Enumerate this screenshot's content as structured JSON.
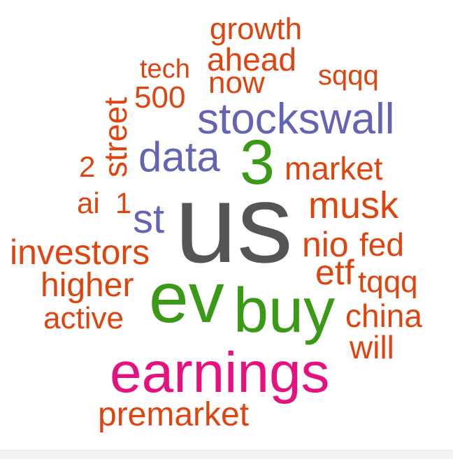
{
  "colors": {
    "orange": "#e0440e",
    "purple": "#6464b4",
    "green": "#3a9a16",
    "gray": "#555555",
    "magenta": "#e6117f"
  },
  "words": [
    {
      "id": "growth",
      "text": "growth",
      "color": "orange"
    },
    {
      "id": "tech",
      "text": "tech",
      "color": "orange"
    },
    {
      "id": "ahead",
      "text": "ahead",
      "color": "orange"
    },
    {
      "id": "sqqq",
      "text": "sqqq",
      "color": "orange"
    },
    {
      "id": "now",
      "text": "now",
      "color": "orange"
    },
    {
      "id": "500",
      "text": "500",
      "color": "orange"
    },
    {
      "id": "street",
      "text": "street",
      "color": "orange"
    },
    {
      "id": "stockswall",
      "text": "stockswall",
      "color": "purple"
    },
    {
      "id": "data",
      "text": "data",
      "color": "purple"
    },
    {
      "id": "3",
      "text": "3",
      "color": "green"
    },
    {
      "id": "2",
      "text": "2",
      "color": "orange"
    },
    {
      "id": "market",
      "text": "market",
      "color": "orange"
    },
    {
      "id": "ai",
      "text": "ai",
      "color": "orange"
    },
    {
      "id": "1",
      "text": "1",
      "color": "orange"
    },
    {
      "id": "musk",
      "text": "musk",
      "color": "orange"
    },
    {
      "id": "st",
      "text": "st",
      "color": "purple"
    },
    {
      "id": "us",
      "text": "us",
      "color": "gray"
    },
    {
      "id": "investors",
      "text": "investors",
      "color": "orange"
    },
    {
      "id": "nio",
      "text": "nio",
      "color": "orange"
    },
    {
      "id": "fed",
      "text": "fed",
      "color": "orange"
    },
    {
      "id": "higher",
      "text": "higher",
      "color": "orange"
    },
    {
      "id": "etf",
      "text": "etf",
      "color": "orange"
    },
    {
      "id": "tqqq",
      "text": "tqqq",
      "color": "orange"
    },
    {
      "id": "ev",
      "text": "ev",
      "color": "green"
    },
    {
      "id": "buy",
      "text": "buy",
      "color": "green"
    },
    {
      "id": "active",
      "text": "active",
      "color": "orange"
    },
    {
      "id": "china",
      "text": "china",
      "color": "orange"
    },
    {
      "id": "will",
      "text": "will",
      "color": "orange"
    },
    {
      "id": "earnings",
      "text": "earnings",
      "color": "magenta"
    },
    {
      "id": "premarket",
      "text": "premarket",
      "color": "orange"
    }
  ]
}
